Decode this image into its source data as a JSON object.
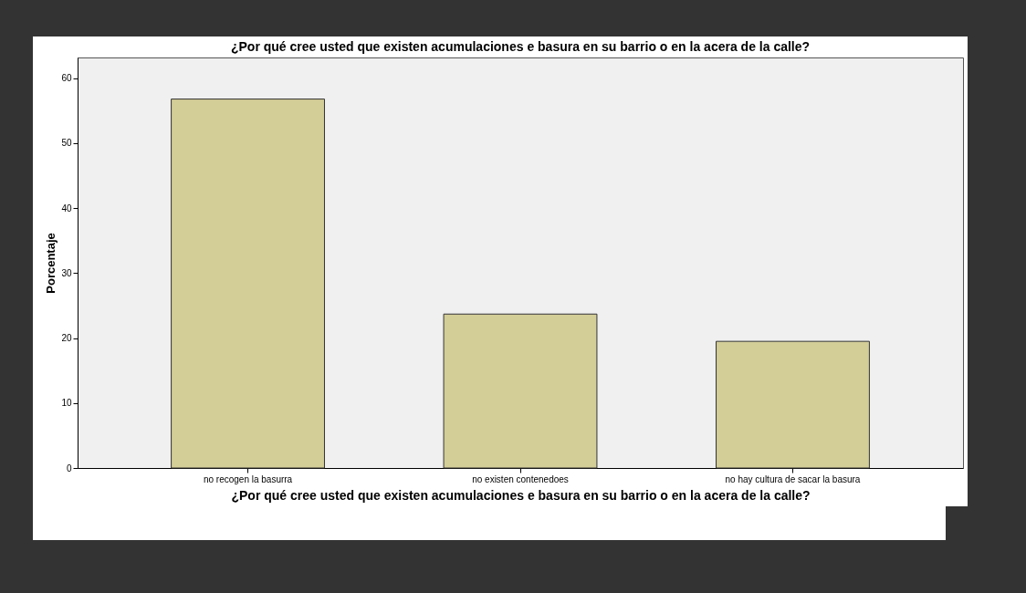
{
  "chart_data": {
    "type": "bar",
    "title": "¿Por qué cree usted que existen acumulaciones e basura en su barrio o en la acera de la calle?",
    "xlabel": "¿Por qué cree usted que existen acumulaciones e basura en su barrio o en la acera de la calle?",
    "ylabel": "Porcentaje",
    "categories": [
      "no recogen la basurra",
      "no existen contenedoes",
      "no hay cultura de sacar la basura"
    ],
    "values": [
      56.8,
      23.7,
      19.5
    ],
    "color": "#d3cd97",
    "ylim": [
      0,
      63.2
    ],
    "yticks": [
      0,
      10,
      20,
      30,
      40,
      50,
      60
    ],
    "grid": false
  }
}
